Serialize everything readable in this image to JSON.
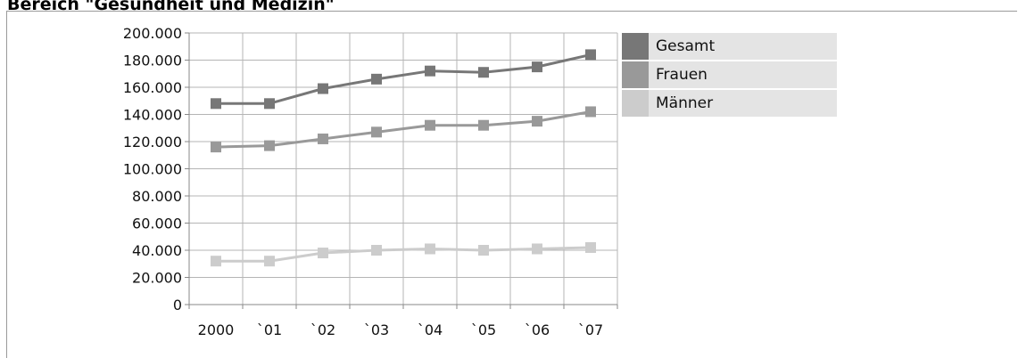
{
  "header": {
    "title": "Bereich \"Gesundheit und Medizin\""
  },
  "chart_data": {
    "type": "line",
    "title": "",
    "xlabel": "",
    "ylabel": "",
    "categories": [
      "2000",
      "`01",
      "`02",
      "`03",
      "`04",
      "`05",
      "`06",
      "`07"
    ],
    "ylim": [
      0,
      200000
    ],
    "yticks": [
      0,
      20000,
      40000,
      60000,
      80000,
      100000,
      120000,
      140000,
      160000,
      180000,
      200000
    ],
    "ytick_labels": [
      "0",
      "20.000",
      "40.000",
      "60.000",
      "80.000",
      "100.000",
      "120.000",
      "140.000",
      "160.000",
      "180.000",
      "200.000"
    ],
    "grid": true,
    "legend_position": "right",
    "series": [
      {
        "name": "Gesamt",
        "color": "#777777",
        "values": [
          148000,
          148000,
          159000,
          166000,
          172000,
          171000,
          175000,
          184000
        ]
      },
      {
        "name": "Frauen",
        "color": "#999999",
        "values": [
          116000,
          117000,
          122000,
          127000,
          132000,
          132000,
          135000,
          142000
        ]
      },
      {
        "name": "Männer",
        "color": "#cccccc",
        "values": [
          32000,
          32000,
          38000,
          40000,
          41000,
          40000,
          41000,
          42000
        ]
      }
    ]
  }
}
